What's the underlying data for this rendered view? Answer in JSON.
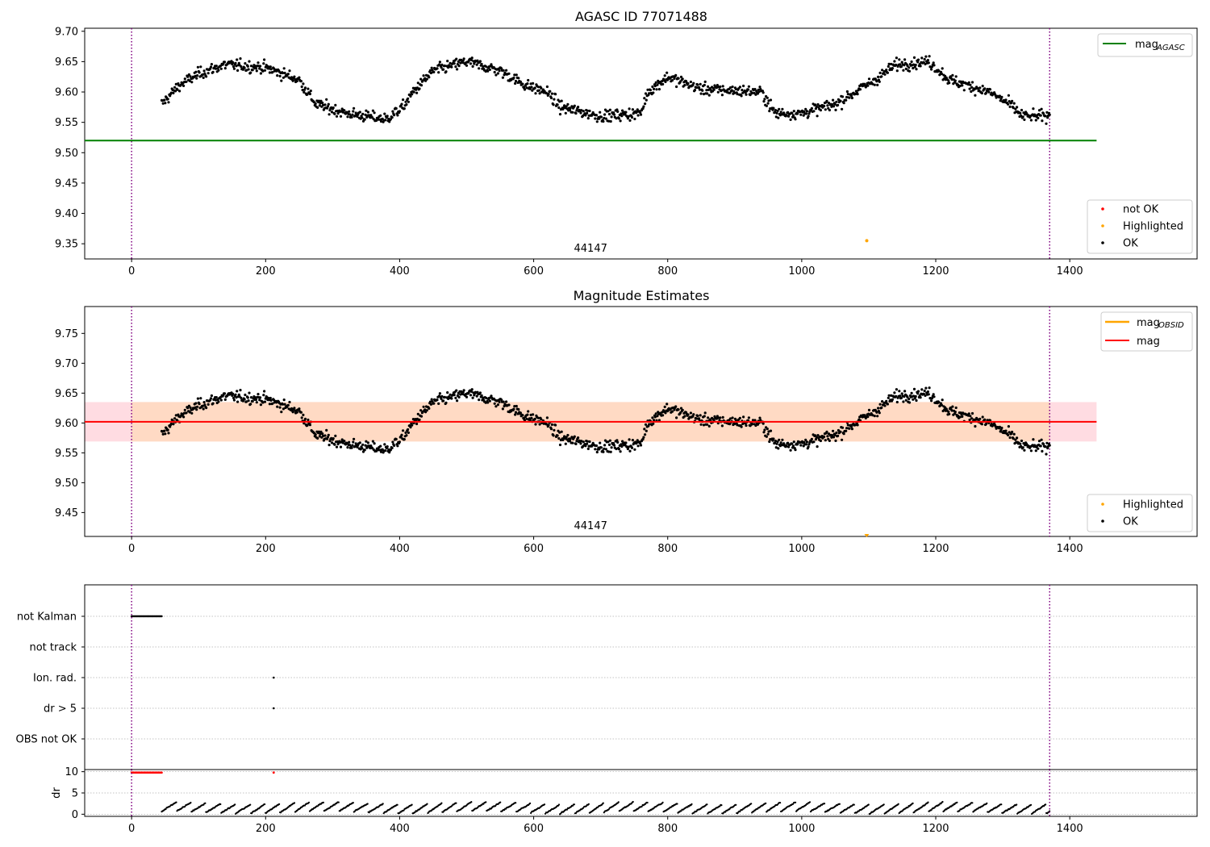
{
  "figure": {
    "title_top": "AGASC ID 77071488",
    "title_mid": "Magnitude Estimates"
  },
  "colors": {
    "ok": "#000000",
    "not_ok": "#ff0000",
    "highlighted": "#ffa500",
    "mag_agasc": "#008000",
    "mag": "#ff0000",
    "mag_obsid": "#ffa500",
    "band_pink": "#ffc0cb",
    "band_orange": "#ffdab9",
    "obs_line": "#800080",
    "grid": "#b0b0b0"
  },
  "chart_data": [
    {
      "type": "scatter",
      "title": "AGASC ID 77071488",
      "xlim": [
        -70,
        1590
      ],
      "ylim": [
        9.325,
        9.705
      ],
      "xticks": [
        0,
        200,
        400,
        600,
        800,
        1000,
        1200,
        1400
      ],
      "yticks": [
        9.35,
        9.4,
        9.45,
        9.5,
        9.55,
        9.6,
        9.65,
        9.7
      ],
      "obsid_label": {
        "text": "44147",
        "x": 685
      },
      "obs_boundaries": [
        0,
        1370
      ],
      "hlines": [
        {
          "name": "mag_AGASC",
          "y": 9.52,
          "x": [
            -70,
            1440
          ]
        }
      ],
      "legend_upper": [
        {
          "label": "mag",
          "sub": "AGASC"
        }
      ],
      "legend_lower": [
        "not OK",
        "Highlighted",
        "OK"
      ],
      "legend_loc": [
        "upper right",
        "lower right"
      ],
      "series": [
        {
          "name": "OK",
          "x_range": [
            45,
            1370
          ],
          "n_points": 1300,
          "mean": 9.603
        },
        {
          "name": "Highlighted",
          "x": [
            1097
          ],
          "y": [
            9.355
          ]
        },
        {
          "name": "not OK",
          "x": [],
          "y": []
        }
      ]
    },
    {
      "type": "scatter",
      "title": "Magnitude Estimates",
      "xlim": [
        -70,
        1590
      ],
      "ylim": [
        9.41,
        9.795
      ],
      "xticks": [
        0,
        200,
        400,
        600,
        800,
        1000,
        1200,
        1400
      ],
      "yticks": [
        9.45,
        9.5,
        9.55,
        9.6,
        9.65,
        9.7,
        9.75
      ],
      "obsid_label": {
        "text": "44147",
        "x": 685
      },
      "obs_boundaries": [
        0,
        1370
      ],
      "hlines": [
        {
          "name": "mag",
          "y": 9.602,
          "x": [
            -70,
            1440
          ]
        },
        {
          "name": "mag_OBSID",
          "y": 9.602,
          "x": [
            0,
            1370
          ]
        }
      ],
      "bands": [
        {
          "name": "mag",
          "y": [
            9.569,
            9.635
          ],
          "x": [
            -70,
            1440
          ]
        },
        {
          "name": "mag_OBSID",
          "y": [
            9.569,
            9.635
          ],
          "x": [
            0,
            1370
          ]
        }
      ],
      "legend_upper": [
        {
          "label": "mag",
          "sub": "OBSID"
        },
        {
          "label": "mag",
          "sub": ""
        }
      ],
      "legend_lower": [
        "Highlighted",
        "OK"
      ],
      "legend_loc": [
        "upper right",
        "lower right"
      ],
      "series": [
        {
          "name": "OK",
          "x_range": [
            45,
            1370
          ],
          "n_points": 1300,
          "mean": 9.603
        },
        {
          "name": "Highlighted",
          "x": [
            1097
          ],
          "y": [
            9.41
          ]
        }
      ]
    },
    {
      "type": "scatter",
      "categories": [
        "not Kalman",
        "not track",
        "Ion. rad.",
        "dr > 5",
        "OBS not OK"
      ],
      "xlim": [
        -70,
        1590
      ],
      "flags": {
        "not Kalman": {
          "x_range": [
            0,
            45
          ]
        },
        "Ion. rad.": {
          "x": [
            212
          ]
        },
        "dr > 5": {
          "x": [
            212
          ]
        }
      },
      "obs_boundaries": [
        0,
        1370
      ]
    },
    {
      "type": "scatter",
      "ylabel": "dr",
      "xlim": [
        -70,
        1590
      ],
      "ylim": [
        -0.5,
        10.5
      ],
      "yticks": [
        0,
        5,
        10
      ],
      "xticks": [
        0,
        200,
        400,
        600,
        800,
        1000,
        1200,
        1400
      ],
      "series": [
        {
          "name": "dr",
          "x_range": [
            45,
            1370
          ],
          "range": [
            0.3,
            2.8
          ]
        },
        {
          "name": "dr clipped",
          "x": [
            0,
            45,
            212
          ],
          "y": 10
        }
      ]
    }
  ]
}
